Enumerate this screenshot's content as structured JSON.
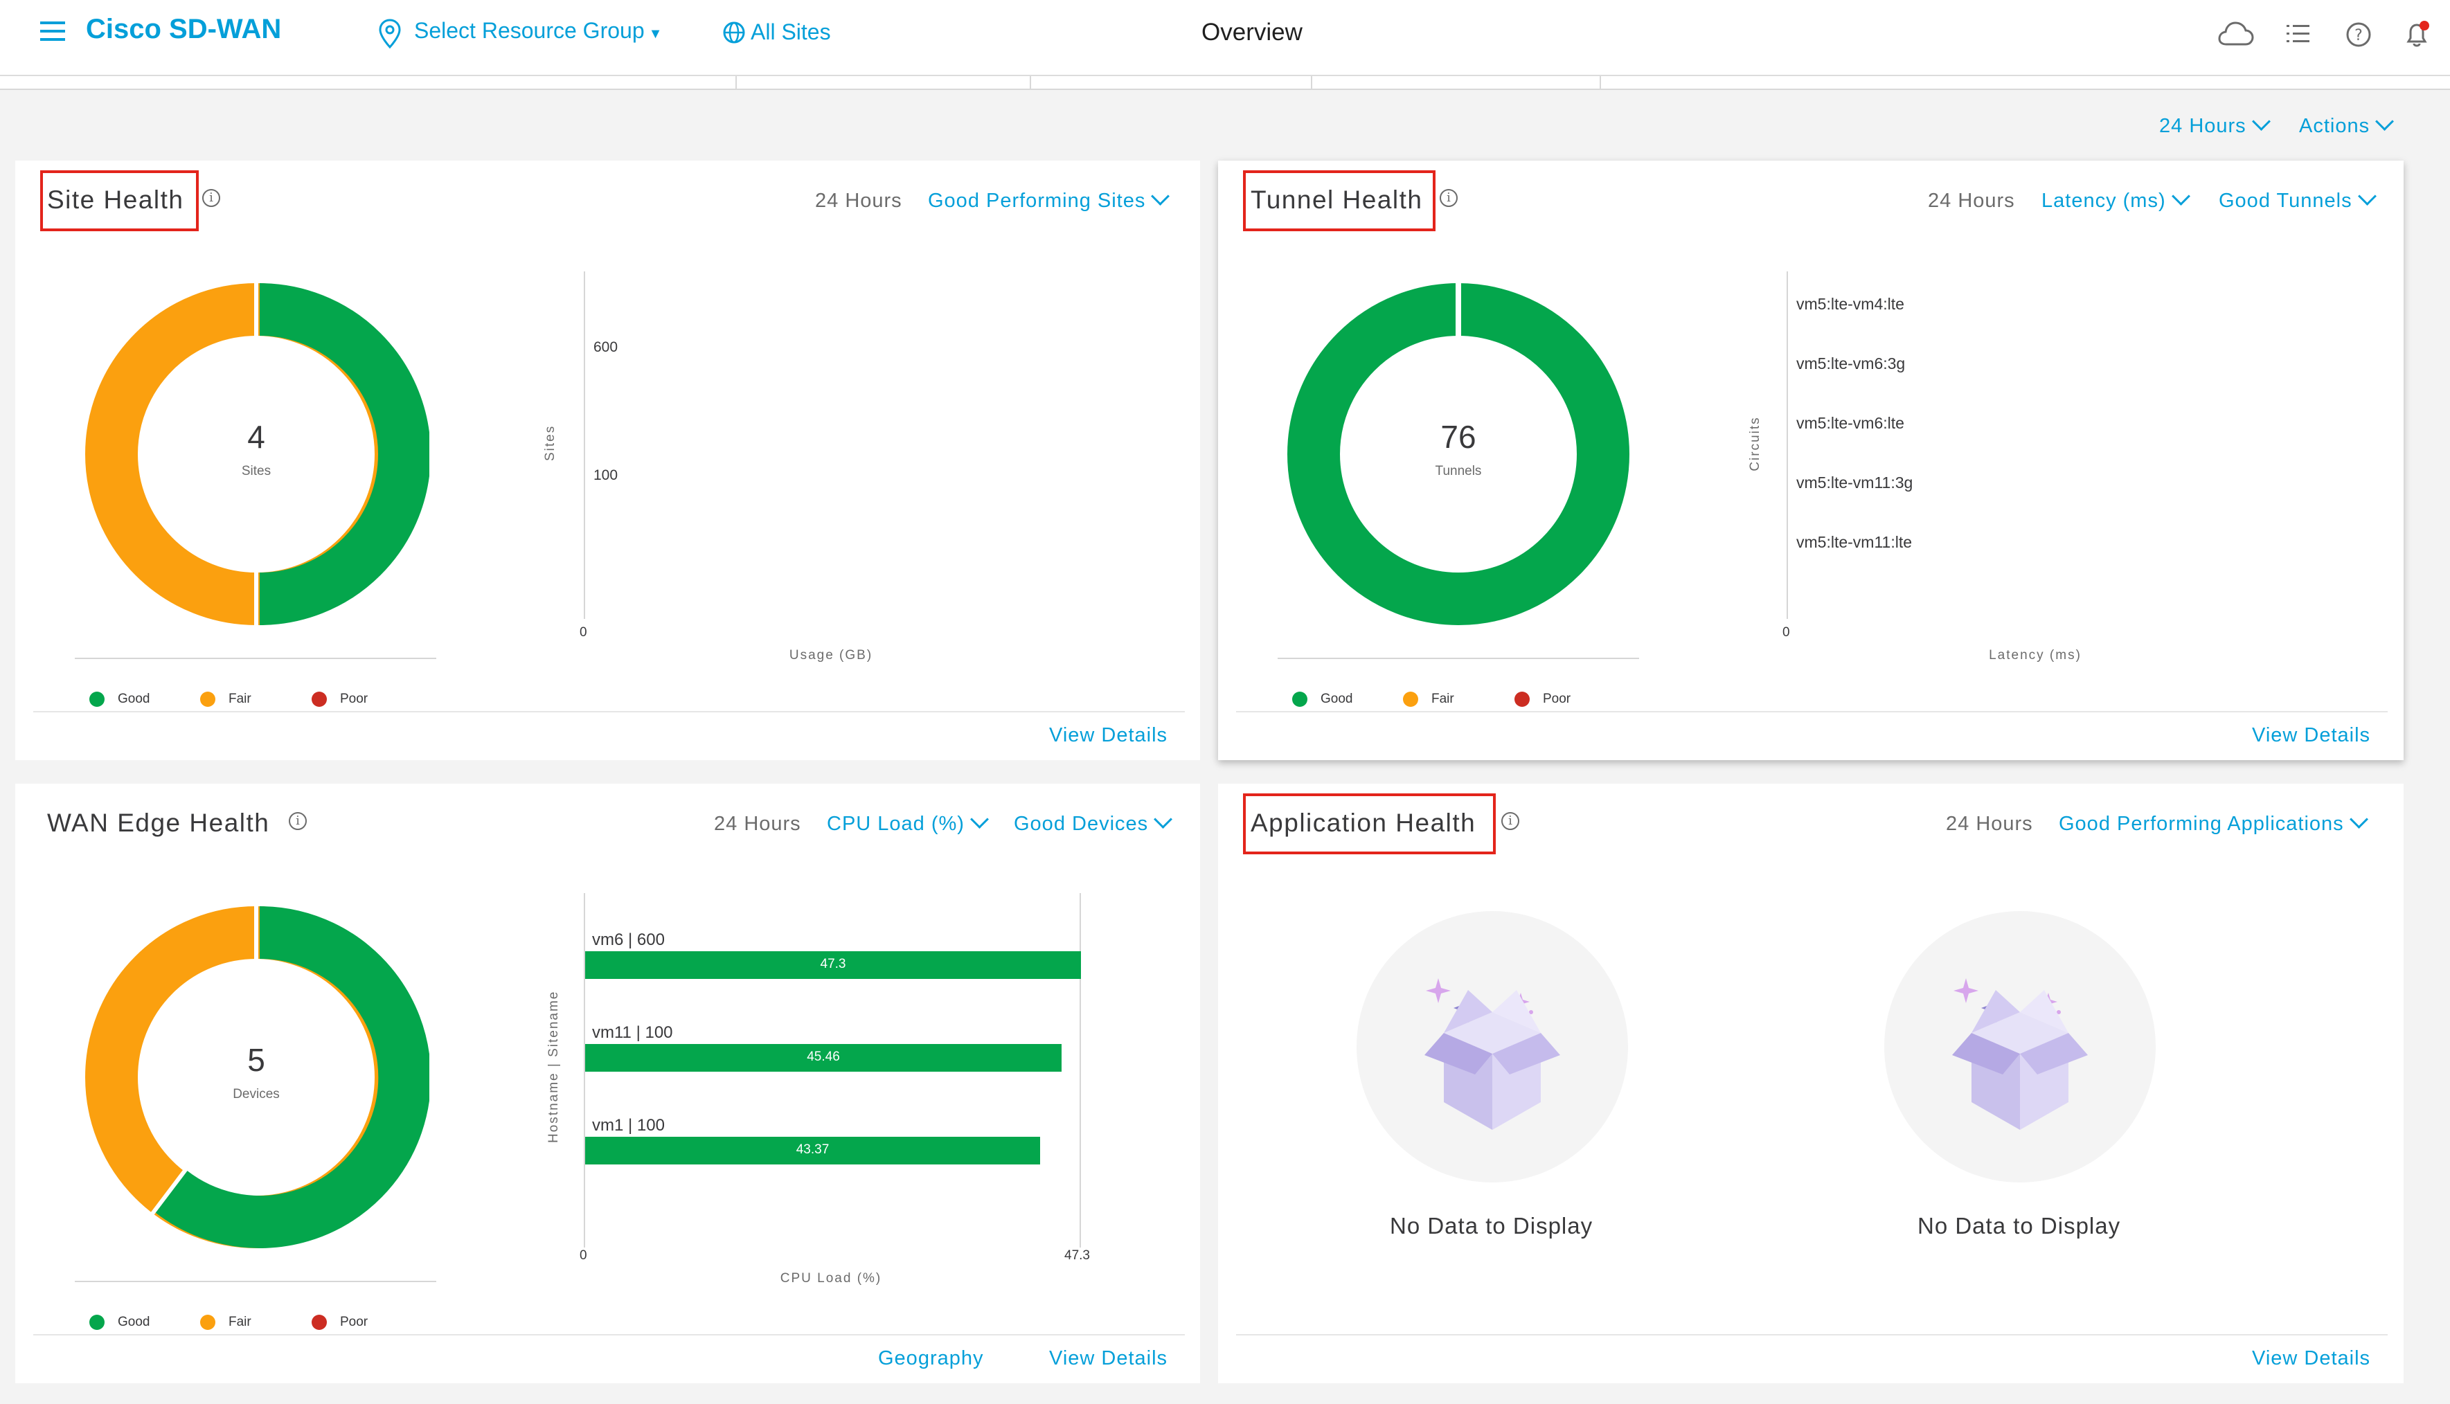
{
  "header": {
    "app_title": "Cisco SD-WAN",
    "resource_group": "Select Resource Group",
    "all_sites": "All Sites",
    "page_title": "Overview"
  },
  "toolbar": {
    "time_range": "24 Hours",
    "actions": "Actions"
  },
  "site_health": {
    "title": "Site Health",
    "time": "24 Hours",
    "filter": "Good Performing Sites",
    "donut": {
      "count": "4",
      "unit": "Sites",
      "good": 2,
      "fair": 2,
      "poor": 0
    },
    "chart_ticks_y": [
      "600",
      "100"
    ],
    "chart_zero": "0",
    "y_title": "Sites",
    "x_title": "Usage (GB)",
    "legend": [
      "Good",
      "Fair",
      "Poor"
    ],
    "view_details": "View Details"
  },
  "tunnel_health": {
    "title": "Tunnel Health",
    "time": "24 Hours",
    "metric": "Latency (ms)",
    "filter": "Good Tunnels",
    "donut": {
      "count": "76",
      "unit": "Tunnels",
      "good": 76,
      "fair": 0,
      "poor": 0
    },
    "circuits": [
      "vm5:lte-vm4:lte",
      "vm5:lte-vm6:3g",
      "vm5:lte-vm6:lte",
      "vm5:lte-vm11:3g",
      "vm5:lte-vm11:lte"
    ],
    "chart_zero": "0",
    "y_title": "Circuits",
    "x_title": "Latency (ms)",
    "legend": [
      "Good",
      "Fair",
      "Poor"
    ],
    "view_details": "View Details"
  },
  "wan_edge_health": {
    "title": "WAN Edge Health",
    "time": "24 Hours",
    "metric": "CPU Load (%)",
    "filter": "Good Devices",
    "donut": {
      "count": "5",
      "unit": "Devices",
      "good": 3,
      "fair": 2,
      "poor": 0
    },
    "y_title": "Hostname | Sitename",
    "x_title": "CPU Load (%)",
    "x_min_label": "0",
    "x_max_label": "47.3",
    "legend": [
      "Good",
      "Fair",
      "Poor"
    ],
    "geography": "Geography",
    "view_details": "View Details"
  },
  "application_health": {
    "title": "Application Health",
    "time": "24 Hours",
    "filter": "Good Performing Applications",
    "no_data_1": "No Data to Display",
    "no_data_2": "No Data to Display",
    "view_details": "View Details"
  },
  "chart_data": [
    {
      "type": "bar",
      "title": "WAN Edge Health",
      "orientation": "horizontal",
      "categories": [
        "vm6 | 600",
        "vm11 | 100",
        "vm1 | 100"
      ],
      "values": [
        47.3,
        45.46,
        43.37
      ],
      "value_labels": [
        "47.3",
        "45.46",
        "43.37"
      ],
      "xlabel": "CPU Load (%)",
      "ylabel": "Hostname | Sitename",
      "xlim": [
        0,
        47.3
      ],
      "color": "#04a64c"
    }
  ],
  "colors": {
    "good": "#04a64c",
    "fair": "#fba00f",
    "poor": "#cc2d22",
    "accent": "#049fd9",
    "highlight": "#e3241b"
  },
  "icons": [
    "menu-icon",
    "location-pin-icon",
    "globe-icon",
    "cloud-icon",
    "task-list-icon",
    "help-icon",
    "bell-icon",
    "info-icon",
    "no-data-box-icon"
  ]
}
